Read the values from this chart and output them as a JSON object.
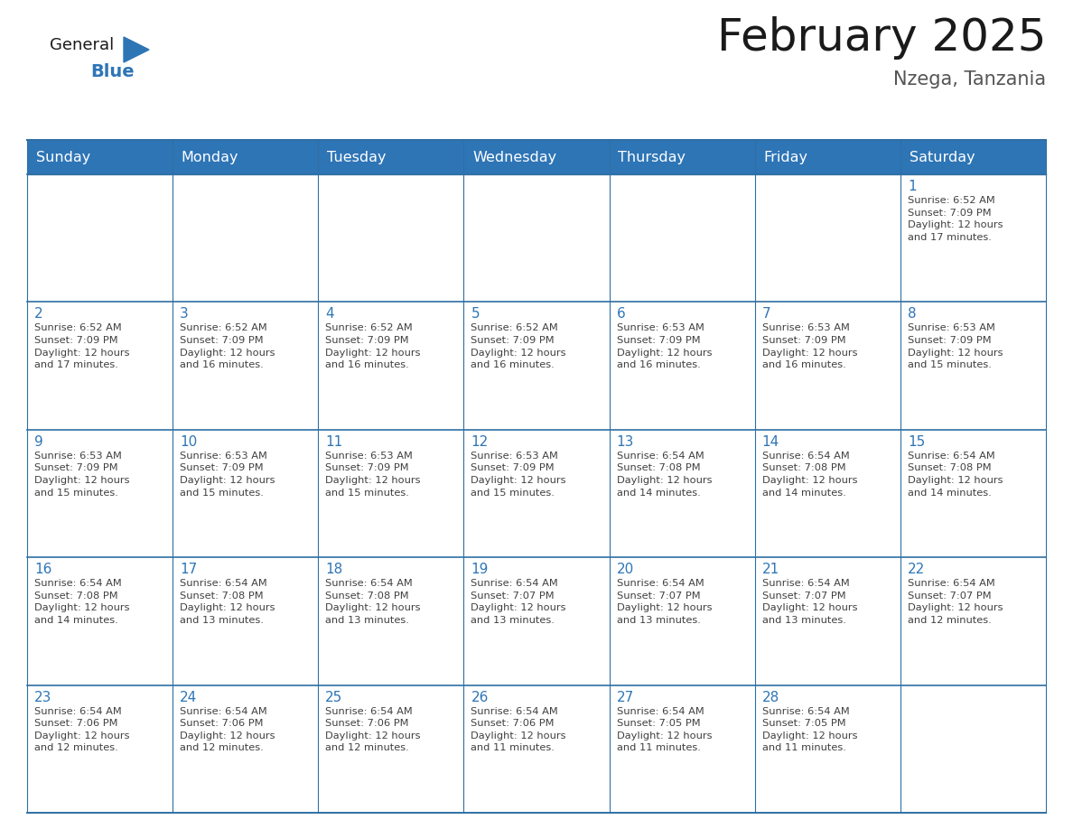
{
  "title": "February 2025",
  "subtitle": "Nzega, Tanzania",
  "header_color": "#2E75B6",
  "header_text_color": "#FFFFFF",
  "cell_bg_color": "#FFFFFF",
  "cell_alt_bg": "#F2F2F2",
  "border_color": "#2E6FA3",
  "day_number_color": "#2E75B6",
  "cell_text_color": "#404040",
  "title_color": "#1a1a1a",
  "logo_general_color": "#1a1a1a",
  "logo_blue_color": "#2E75B6",
  "logo_triangle_color": "#2E75B6",
  "days_of_week": [
    "Sunday",
    "Monday",
    "Tuesday",
    "Wednesday",
    "Thursday",
    "Friday",
    "Saturday"
  ],
  "title_fontsize": 36,
  "subtitle_fontsize": 15,
  "header_fontsize": 11.5,
  "cell_fontsize": 8.2,
  "day_num_fontsize": 11,
  "logo_fontsize": 13,
  "calendar_data": [
    [
      {
        "day": 0,
        "info": ""
      },
      {
        "day": 0,
        "info": ""
      },
      {
        "day": 0,
        "info": ""
      },
      {
        "day": 0,
        "info": ""
      },
      {
        "day": 0,
        "info": ""
      },
      {
        "day": 0,
        "info": ""
      },
      {
        "day": 1,
        "info": "Sunrise: 6:52 AM\nSunset: 7:09 PM\nDaylight: 12 hours\nand 17 minutes."
      }
    ],
    [
      {
        "day": 2,
        "info": "Sunrise: 6:52 AM\nSunset: 7:09 PM\nDaylight: 12 hours\nand 17 minutes."
      },
      {
        "day": 3,
        "info": "Sunrise: 6:52 AM\nSunset: 7:09 PM\nDaylight: 12 hours\nand 16 minutes."
      },
      {
        "day": 4,
        "info": "Sunrise: 6:52 AM\nSunset: 7:09 PM\nDaylight: 12 hours\nand 16 minutes."
      },
      {
        "day": 5,
        "info": "Sunrise: 6:52 AM\nSunset: 7:09 PM\nDaylight: 12 hours\nand 16 minutes."
      },
      {
        "day": 6,
        "info": "Sunrise: 6:53 AM\nSunset: 7:09 PM\nDaylight: 12 hours\nand 16 minutes."
      },
      {
        "day": 7,
        "info": "Sunrise: 6:53 AM\nSunset: 7:09 PM\nDaylight: 12 hours\nand 16 minutes."
      },
      {
        "day": 8,
        "info": "Sunrise: 6:53 AM\nSunset: 7:09 PM\nDaylight: 12 hours\nand 15 minutes."
      }
    ],
    [
      {
        "day": 9,
        "info": "Sunrise: 6:53 AM\nSunset: 7:09 PM\nDaylight: 12 hours\nand 15 minutes."
      },
      {
        "day": 10,
        "info": "Sunrise: 6:53 AM\nSunset: 7:09 PM\nDaylight: 12 hours\nand 15 minutes."
      },
      {
        "day": 11,
        "info": "Sunrise: 6:53 AM\nSunset: 7:09 PM\nDaylight: 12 hours\nand 15 minutes."
      },
      {
        "day": 12,
        "info": "Sunrise: 6:53 AM\nSunset: 7:09 PM\nDaylight: 12 hours\nand 15 minutes."
      },
      {
        "day": 13,
        "info": "Sunrise: 6:54 AM\nSunset: 7:08 PM\nDaylight: 12 hours\nand 14 minutes."
      },
      {
        "day": 14,
        "info": "Sunrise: 6:54 AM\nSunset: 7:08 PM\nDaylight: 12 hours\nand 14 minutes."
      },
      {
        "day": 15,
        "info": "Sunrise: 6:54 AM\nSunset: 7:08 PM\nDaylight: 12 hours\nand 14 minutes."
      }
    ],
    [
      {
        "day": 16,
        "info": "Sunrise: 6:54 AM\nSunset: 7:08 PM\nDaylight: 12 hours\nand 14 minutes."
      },
      {
        "day": 17,
        "info": "Sunrise: 6:54 AM\nSunset: 7:08 PM\nDaylight: 12 hours\nand 13 minutes."
      },
      {
        "day": 18,
        "info": "Sunrise: 6:54 AM\nSunset: 7:08 PM\nDaylight: 12 hours\nand 13 minutes."
      },
      {
        "day": 19,
        "info": "Sunrise: 6:54 AM\nSunset: 7:07 PM\nDaylight: 12 hours\nand 13 minutes."
      },
      {
        "day": 20,
        "info": "Sunrise: 6:54 AM\nSunset: 7:07 PM\nDaylight: 12 hours\nand 13 minutes."
      },
      {
        "day": 21,
        "info": "Sunrise: 6:54 AM\nSunset: 7:07 PM\nDaylight: 12 hours\nand 13 minutes."
      },
      {
        "day": 22,
        "info": "Sunrise: 6:54 AM\nSunset: 7:07 PM\nDaylight: 12 hours\nand 12 minutes."
      }
    ],
    [
      {
        "day": 23,
        "info": "Sunrise: 6:54 AM\nSunset: 7:06 PM\nDaylight: 12 hours\nand 12 minutes."
      },
      {
        "day": 24,
        "info": "Sunrise: 6:54 AM\nSunset: 7:06 PM\nDaylight: 12 hours\nand 12 minutes."
      },
      {
        "day": 25,
        "info": "Sunrise: 6:54 AM\nSunset: 7:06 PM\nDaylight: 12 hours\nand 12 minutes."
      },
      {
        "day": 26,
        "info": "Sunrise: 6:54 AM\nSunset: 7:06 PM\nDaylight: 12 hours\nand 11 minutes."
      },
      {
        "day": 27,
        "info": "Sunrise: 6:54 AM\nSunset: 7:05 PM\nDaylight: 12 hours\nand 11 minutes."
      },
      {
        "day": 28,
        "info": "Sunrise: 6:54 AM\nSunset: 7:05 PM\nDaylight: 12 hours\nand 11 minutes."
      },
      {
        "day": 0,
        "info": ""
      }
    ]
  ]
}
